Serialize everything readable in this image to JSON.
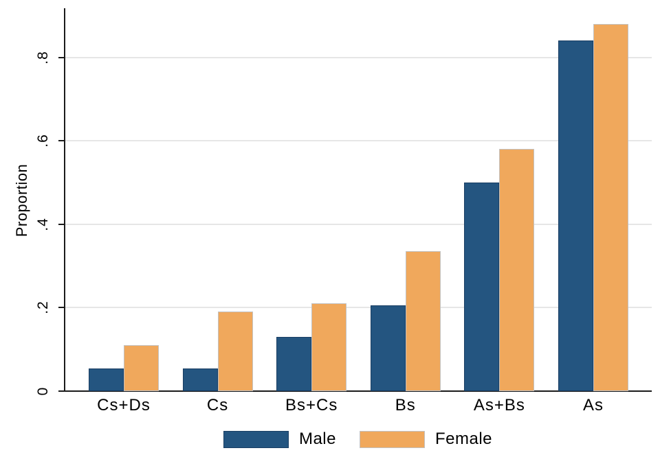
{
  "chart_data": {
    "type": "bar",
    "title": "",
    "xlabel": "",
    "ylabel": "Proportion",
    "categories": [
      "Cs+Ds",
      "Cs",
      "Bs+Cs",
      "Bs",
      "As+Bs",
      "As"
    ],
    "series": [
      {
        "name": "Male",
        "color": "#245580",
        "border_color": "#1a3e63",
        "values": [
          0.055,
          0.055,
          0.13,
          0.205,
          0.5,
          0.84
        ]
      },
      {
        "name": "Female",
        "color": "#f0a85c",
        "border_color": "#c2c2c2",
        "values": [
          0.11,
          0.19,
          0.21,
          0.335,
          0.58,
          0.88
        ]
      }
    ],
    "y_ticks": [
      {
        "value": 0,
        "label": "0"
      },
      {
        "value": 0.2,
        "label": ".2"
      },
      {
        "value": 0.4,
        "label": ".4"
      },
      {
        "value": 0.6,
        "label": ".6"
      },
      {
        "value": 0.8,
        "label": ".8"
      }
    ],
    "ylim": [
      0,
      0.92
    ],
    "grid": true,
    "legend_position": "bottom",
    "colors": {
      "axis": "#1a1a1a",
      "gridline": "#e6e6e6",
      "background": "#ffffff",
      "text": "#000000"
    }
  }
}
